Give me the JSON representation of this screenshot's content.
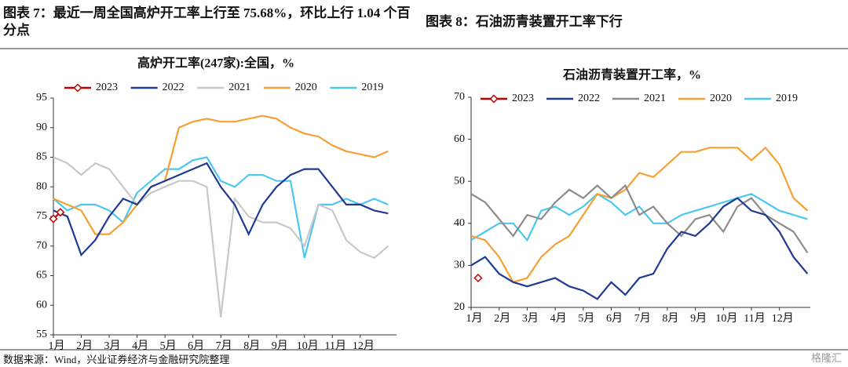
{
  "figure_titles": [
    "图表 7：最近一周全国高炉开工率上行至 75.68%，环比上行 1.04 个百分点",
    "图表 8：石油沥青装置开工率下行"
  ],
  "source": "数据来源：Wind，兴业证券经济与金融研究院整理",
  "watermark": "格隆汇",
  "chart_data": [
    {
      "type": "line",
      "title": "高炉开工率(247家):全国，%",
      "x": [
        0,
        0.5,
        1,
        1.5,
        2,
        2.5,
        3,
        3.5,
        4,
        4.5,
        5,
        5.5,
        6,
        6.5,
        7,
        7.5,
        8,
        8.5,
        9,
        9.5,
        10,
        10.5,
        11,
        11.5,
        12
      ],
      "xlim": [
        0,
        12.3
      ],
      "xticks": [
        {
          "value": 0,
          "label": "1月"
        },
        {
          "value": 1,
          "label": "2月"
        },
        {
          "value": 2,
          "label": "3月"
        },
        {
          "value": 3,
          "label": "4月"
        },
        {
          "value": 4,
          "label": "5月"
        },
        {
          "value": 5,
          "label": "6月"
        },
        {
          "value": 6,
          "label": "7月"
        },
        {
          "value": 7,
          "label": "8月"
        },
        {
          "value": 8,
          "label": "9月"
        },
        {
          "value": 9,
          "label": "10月"
        },
        {
          "value": 10,
          "label": "11月"
        },
        {
          "value": 11,
          "label": "12月"
        }
      ],
      "ylim": [
        55,
        95
      ],
      "yticks": [
        55,
        60,
        65,
        70,
        75,
        80,
        85,
        90,
        95
      ],
      "grid": false,
      "series": [
        {
          "name": "2023",
          "color": "#c00000",
          "marker": "diamond",
          "x": [
            0,
            0.25
          ],
          "values": [
            74.6,
            75.7
          ]
        },
        {
          "name": "2022",
          "color": "#1f3a93",
          "values": [
            76,
            75,
            68.5,
            71,
            75,
            78,
            77,
            80,
            81,
            82,
            83,
            84,
            80,
            77,
            72,
            77,
            80,
            82,
            83,
            83,
            80,
            77,
            77,
            76,
            75.5
          ]
        },
        {
          "name": "2021",
          "color": "#c8c8c8",
          "values": [
            85,
            84,
            82,
            84,
            83,
            80,
            77,
            79,
            80,
            81,
            81,
            80,
            58,
            78,
            75,
            74,
            74,
            73,
            70,
            77,
            76,
            71,
            69,
            68,
            70
          ]
        },
        {
          "name": "2020",
          "color": "#f5a033",
          "values": [
            78,
            77,
            76,
            72,
            72,
            74,
            77,
            80,
            81,
            90,
            91,
            91.5,
            91,
            91,
            91.5,
            92,
            91.5,
            90,
            89,
            88.5,
            87,
            86,
            85.5,
            85,
            86
          ]
        },
        {
          "name": "2019",
          "color": "#4cc8f0",
          "values": [
            78,
            76,
            77,
            77,
            76,
            74,
            79,
            81,
            83,
            83,
            84.5,
            85,
            81,
            80,
            82,
            82,
            81,
            81,
            68,
            77,
            77,
            78,
            77,
            78,
            77
          ]
        }
      ]
    },
    {
      "type": "line",
      "title": "石油沥青装置开工率，%",
      "x": [
        0,
        0.5,
        1,
        1.5,
        2,
        2.5,
        3,
        3.5,
        4,
        4.5,
        5,
        5.5,
        6,
        6.5,
        7,
        7.5,
        8,
        8.5,
        9,
        9.5,
        10,
        10.5,
        11,
        11.5,
        12
      ],
      "xlim": [
        0,
        12.1
      ],
      "xticks": [
        {
          "value": 0,
          "label": "1月"
        },
        {
          "value": 1,
          "label": "2月"
        },
        {
          "value": 2,
          "label": "3月"
        },
        {
          "value": 3,
          "label": "4月"
        },
        {
          "value": 4,
          "label": "5月"
        },
        {
          "value": 5,
          "label": "6月"
        },
        {
          "value": 6,
          "label": "7月"
        },
        {
          "value": 7,
          "label": "8月"
        },
        {
          "value": 8,
          "label": "9月"
        },
        {
          "value": 9,
          "label": "10月"
        },
        {
          "value": 10,
          "label": "11月"
        },
        {
          "value": 11,
          "label": "12月"
        }
      ],
      "ylim": [
        20,
        70
      ],
      "yticks": [
        20,
        30,
        40,
        50,
        60,
        70
      ],
      "grid": false,
      "series": [
        {
          "name": "2023",
          "color": "#c00000",
          "marker": "diamond",
          "x": [
            0.25
          ],
          "values": [
            27
          ]
        },
        {
          "name": "2022",
          "color": "#1f3a93",
          "values": [
            30,
            32,
            28,
            26,
            25,
            26,
            27,
            25,
            24,
            22,
            26,
            23,
            27,
            28,
            34,
            38,
            37,
            40,
            44,
            46,
            43,
            42,
            38,
            32,
            28
          ]
        },
        {
          "name": "2021",
          "color": "#8c8c8c",
          "values": [
            47,
            45,
            41,
            37,
            42,
            41,
            45,
            48,
            46,
            49,
            46,
            49,
            42,
            44,
            40,
            37,
            41,
            42,
            38,
            44,
            46,
            42,
            40,
            38,
            33
          ]
        },
        {
          "name": "2020",
          "color": "#f5a033",
          "values": [
            37,
            36,
            32,
            26,
            27,
            32,
            35,
            37,
            42,
            47,
            46,
            48,
            52,
            51,
            54,
            57,
            57,
            58,
            58,
            58,
            55,
            58,
            54,
            46,
            43
          ]
        },
        {
          "name": "2019",
          "color": "#4cc8f0",
          "values": [
            36,
            38,
            40,
            40,
            36,
            43,
            44,
            42,
            44,
            47,
            45,
            42,
            44,
            40,
            40,
            42,
            43,
            44,
            45,
            46,
            47,
            45,
            43,
            42,
            41
          ]
        }
      ]
    }
  ]
}
